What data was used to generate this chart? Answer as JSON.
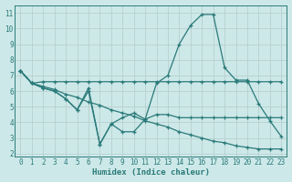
{
  "background_color": "#cde8e8",
  "grid_color": "#b8d0d0",
  "line_color": "#2a7a7a",
  "xlabel": "Humidex (Indice chaleur)",
  "xlim": [
    -0.5,
    23.5
  ],
  "ylim": [
    1.8,
    11.5
  ],
  "yticks": [
    2,
    3,
    4,
    5,
    6,
    7,
    8,
    9,
    10,
    11
  ],
  "xticks": [
    0,
    1,
    2,
    3,
    4,
    5,
    6,
    7,
    8,
    9,
    10,
    11,
    12,
    13,
    14,
    15,
    16,
    17,
    18,
    19,
    20,
    21,
    22,
    23
  ],
  "series": [
    {
      "x": [
        0,
        1,
        2,
        3,
        4,
        5,
        6,
        7,
        8,
        9,
        10,
        11,
        12,
        13,
        14,
        15,
        16,
        17,
        18,
        19,
        20,
        21,
        22,
        23
      ],
      "y": [
        7.3,
        6.5,
        6.6,
        6.6,
        6.6,
        6.6,
        6.6,
        6.6,
        6.6,
        6.6,
        6.6,
        6.6,
        6.6,
        6.6,
        6.6,
        6.6,
        6.6,
        6.6,
        6.6,
        6.6,
        6.6,
        6.6,
        6.6,
        6.6
      ]
    },
    {
      "x": [
        0,
        1,
        2,
        3,
        4,
        5,
        6,
        7,
        8,
        9,
        10,
        11,
        12,
        13,
        14,
        15,
        16,
        17,
        18,
        19,
        20,
        21,
        22,
        23
      ],
      "y": [
        7.3,
        6.5,
        6.2,
        6.0,
        5.5,
        4.8,
        6.2,
        2.6,
        3.9,
        4.3,
        4.6,
        4.2,
        6.5,
        7.0,
        9.0,
        10.2,
        10.9,
        10.9,
        7.5,
        6.7,
        6.7,
        5.2,
        4.1,
        3.1
      ]
    },
    {
      "x": [
        0,
        1,
        2,
        3,
        4,
        5,
        6,
        7,
        8,
        9,
        10,
        11,
        12,
        13,
        14,
        15,
        16,
        17,
        18,
        19,
        20,
        21,
        22,
        23
      ],
      "y": [
        7.3,
        6.5,
        6.3,
        6.1,
        5.8,
        5.6,
        5.3,
        5.1,
        4.8,
        4.6,
        4.4,
        4.1,
        3.9,
        3.7,
        3.4,
        3.2,
        3.0,
        2.8,
        2.7,
        2.5,
        2.4,
        2.3,
        2.3,
        2.3
      ]
    },
    {
      "x": [
        0,
        1,
        2,
        3,
        4,
        5,
        6,
        7,
        8,
        9,
        10,
        11,
        12,
        13,
        14,
        15,
        16,
        17,
        18,
        19,
        20,
        21,
        22,
        23
      ],
      "y": [
        7.3,
        6.5,
        6.2,
        6.0,
        5.5,
        4.8,
        6.0,
        2.6,
        3.9,
        3.4,
        3.4,
        4.2,
        4.5,
        4.5,
        4.3,
        4.3,
        4.3,
        4.3,
        4.3,
        4.3,
        4.3,
        4.3,
        4.3,
        4.3
      ]
    }
  ]
}
